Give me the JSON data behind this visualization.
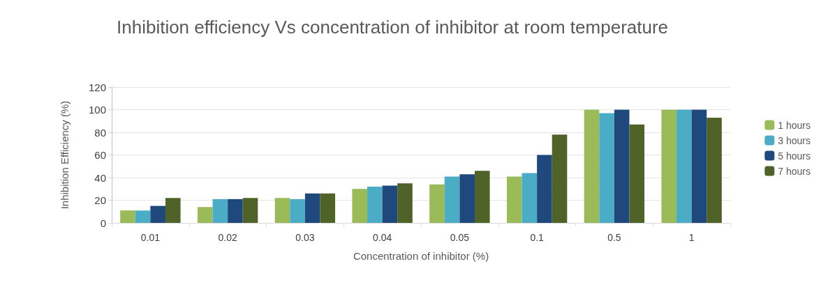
{
  "chart_data": {
    "type": "bar",
    "title": "Inhibition efficiency Vs concentration of inhibitor at room temperature",
    "xlabel": "Concentration of inhibitor (%)",
    "ylabel": "Inhibition Efficiency (%)",
    "categories": [
      "0.01",
      "0.02",
      "0.03",
      "0.04",
      "0.05",
      "0.1",
      "0.5",
      "1"
    ],
    "series": [
      {
        "name": "1 hours",
        "color": "#9bbb59",
        "values": [
          11,
          14,
          22,
          30,
          34,
          41,
          100,
          100
        ]
      },
      {
        "name": "3 hours",
        "color": "#4bacc6",
        "values": [
          11,
          21,
          21,
          32,
          41,
          44,
          97,
          100
        ]
      },
      {
        "name": "5 hours",
        "color": "#1f497d",
        "values": [
          15,
          21,
          26,
          33,
          43,
          60,
          100,
          100
        ]
      },
      {
        "name": "7 hours",
        "color": "#4f6228",
        "values": [
          22,
          22,
          26,
          35,
          46,
          78,
          87,
          93
        ]
      }
    ],
    "ylim": [
      0,
      120
    ],
    "yticks": [
      0,
      20,
      40,
      60,
      80,
      100,
      120
    ],
    "grid": "y",
    "legend": "right"
  }
}
